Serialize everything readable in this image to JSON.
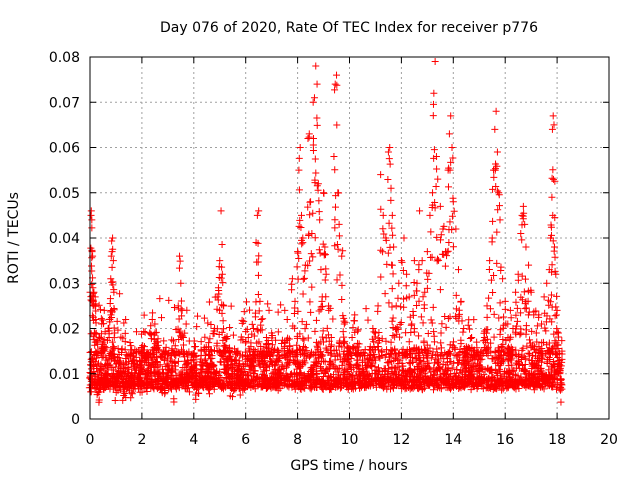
{
  "chart_data": {
    "type": "scatter",
    "title": "Day 076 of 2020, Rate Of TEC Index for receiver p776",
    "xlabel": "GPS time / hours",
    "ylabel": "ROTI / TECUs",
    "xlim": [
      0,
      20
    ],
    "ylim": [
      0,
      0.08
    ],
    "xticks": [
      0,
      2,
      4,
      6,
      8,
      10,
      12,
      14,
      16,
      18,
      20
    ],
    "yticks": [
      0,
      0.01,
      0.02,
      0.03,
      0.04,
      0.05,
      0.06,
      0.07,
      0.08
    ],
    "xtick_labels": [
      "0",
      "2",
      "4",
      "6",
      "8",
      "10",
      "12",
      "14",
      "16",
      "18",
      "20"
    ],
    "ytick_labels": [
      "0",
      "0.01",
      "0.02",
      "0.03",
      "0.04",
      "0.05",
      "0.06",
      "0.07",
      "0.08"
    ],
    "grid": true,
    "marker": "+",
    "color": "#ff0000",
    "series": [
      {
        "name": "ROTI",
        "points": [
          [
            0.0,
            0.009
          ],
          [
            0.02,
            0.012
          ],
          [
            0.04,
            0.045
          ],
          [
            0.05,
            0.046
          ],
          [
            0.07,
            0.044
          ],
          [
            0.08,
            0.037
          ],
          [
            0.1,
            0.036
          ],
          [
            0.12,
            0.025
          ],
          [
            0.13,
            0.026
          ],
          [
            0.15,
            0.028
          ],
          [
            0.18,
            0.019
          ],
          [
            0.2,
            0.027
          ],
          [
            0.22,
            0.022
          ],
          [
            0.25,
            0.014
          ],
          [
            0.3,
            0.008
          ],
          [
            0.35,
            0.006
          ],
          [
            0.4,
            0.011
          ],
          [
            0.45,
            0.021
          ],
          [
            0.5,
            0.017
          ],
          [
            0.55,
            0.024
          ],
          [
            0.6,
            0.009
          ],
          [
            0.65,
            0.013
          ],
          [
            0.7,
            0.02
          ],
          [
            0.75,
            0.022
          ],
          [
            0.8,
            0.031
          ],
          [
            0.82,
            0.036
          ],
          [
            0.85,
            0.037
          ],
          [
            0.87,
            0.04
          ],
          [
            0.9,
            0.035
          ],
          [
            0.92,
            0.028
          ],
          [
            0.95,
            0.019
          ],
          [
            1.0,
            0.007
          ],
          [
            1.1,
            0.01
          ],
          [
            1.2,
            0.012
          ],
          [
            1.3,
            0.006
          ],
          [
            1.4,
            0.009
          ],
          [
            1.5,
            0.011
          ],
          [
            1.6,
            0.008
          ],
          [
            1.7,
            0.013
          ],
          [
            1.8,
            0.015
          ],
          [
            1.9,
            0.01
          ],
          [
            2.0,
            0.012
          ],
          [
            2.1,
            0.016
          ],
          [
            2.2,
            0.009
          ],
          [
            2.3,
            0.019
          ],
          [
            2.4,
            0.022
          ],
          [
            2.5,
            0.021
          ],
          [
            2.6,
            0.017
          ],
          [
            2.7,
            0.012
          ],
          [
            2.8,
            0.01
          ],
          [
            2.9,
            0.008
          ],
          [
            3.0,
            0.011
          ],
          [
            3.1,
            0.013
          ],
          [
            3.2,
            0.009
          ],
          [
            3.3,
            0.014
          ],
          [
            3.4,
            0.025
          ],
          [
            3.45,
            0.036
          ],
          [
            3.5,
            0.03
          ],
          [
            3.55,
            0.024
          ],
          [
            3.6,
            0.018
          ],
          [
            3.7,
            0.012
          ],
          [
            3.8,
            0.009
          ],
          [
            3.9,
            0.011
          ],
          [
            4.0,
            0.013
          ],
          [
            4.1,
            0.01
          ],
          [
            4.2,
            0.008
          ],
          [
            4.3,
            0.012
          ],
          [
            4.4,
            0.015
          ],
          [
            4.5,
            0.011
          ],
          [
            4.6,
            0.009
          ],
          [
            4.7,
            0.014
          ],
          [
            4.8,
            0.02
          ],
          [
            4.9,
            0.027
          ],
          [
            4.95,
            0.029
          ],
          [
            5.0,
            0.035
          ],
          [
            5.05,
            0.046
          ],
          [
            5.1,
            0.032
          ],
          [
            5.15,
            0.025
          ],
          [
            5.2,
            0.018
          ],
          [
            5.3,
            0.012
          ],
          [
            5.4,
            0.009
          ],
          [
            5.5,
            0.011
          ],
          [
            5.6,
            0.013
          ],
          [
            5.7,
            0.015
          ],
          [
            5.8,
            0.01
          ],
          [
            5.9,
            0.012
          ],
          [
            6.0,
            0.014
          ],
          [
            6.1,
            0.018
          ],
          [
            6.2,
            0.016
          ],
          [
            6.3,
            0.02
          ],
          [
            6.4,
            0.039
          ],
          [
            6.45,
            0.045
          ],
          [
            6.5,
            0.046
          ],
          [
            6.55,
            0.026
          ],
          [
            6.6,
            0.022
          ],
          [
            6.7,
            0.015
          ],
          [
            6.8,
            0.018
          ],
          [
            6.9,
            0.024
          ],
          [
            7.0,
            0.019
          ],
          [
            7.1,
            0.015
          ],
          [
            7.2,
            0.013
          ],
          [
            7.3,
            0.011
          ],
          [
            7.4,
            0.014
          ],
          [
            7.5,
            0.017
          ],
          [
            7.6,
            0.022
          ],
          [
            7.7,
            0.016
          ],
          [
            7.8,
            0.031
          ],
          [
            7.9,
            0.026
          ],
          [
            8.0,
            0.037
          ],
          [
            8.05,
            0.055
          ],
          [
            8.1,
            0.06
          ],
          [
            8.15,
            0.045
          ],
          [
            8.2,
            0.04
          ],
          [
            8.3,
            0.034
          ],
          [
            8.4,
            0.062
          ],
          [
            8.45,
            0.063
          ],
          [
            8.5,
            0.048
          ],
          [
            8.55,
            0.041
          ],
          [
            8.6,
            0.07
          ],
          [
            8.65,
            0.071
          ],
          [
            8.7,
            0.078
          ],
          [
            8.75,
            0.074
          ],
          [
            8.8,
            0.052
          ],
          [
            8.85,
            0.044
          ],
          [
            8.9,
            0.033
          ],
          [
            8.95,
            0.027
          ],
          [
            9.0,
            0.05
          ],
          [
            9.05,
            0.038
          ],
          [
            9.1,
            0.032
          ],
          [
            9.2,
            0.024
          ],
          [
            9.3,
            0.018
          ],
          [
            9.4,
            0.058
          ],
          [
            9.45,
            0.074
          ],
          [
            9.5,
            0.076
          ],
          [
            9.55,
            0.05
          ],
          [
            9.6,
            0.043
          ],
          [
            9.7,
            0.036
          ],
          [
            9.8,
            0.021
          ],
          [
            9.9,
            0.015
          ],
          [
            10.0,
            0.012
          ],
          [
            10.1,
            0.018
          ],
          [
            10.2,
            0.023
          ],
          [
            10.3,
            0.014
          ],
          [
            10.4,
            0.011
          ],
          [
            10.5,
            0.013
          ],
          [
            10.6,
            0.009
          ],
          [
            10.7,
            0.012
          ],
          [
            10.8,
            0.016
          ],
          [
            10.9,
            0.02
          ],
          [
            11.0,
            0.019
          ],
          [
            11.1,
            0.025
          ],
          [
            11.2,
            0.054
          ],
          [
            11.3,
            0.045
          ],
          [
            11.4,
            0.04
          ],
          [
            11.5,
            0.059
          ],
          [
            11.55,
            0.06
          ],
          [
            11.6,
            0.051
          ],
          [
            11.65,
            0.045
          ],
          [
            11.7,
            0.038
          ],
          [
            11.8,
            0.025
          ],
          [
            11.9,
            0.03
          ],
          [
            12.0,
            0.035
          ],
          [
            12.1,
            0.04
          ],
          [
            12.2,
            0.032
          ],
          [
            12.3,
            0.027
          ],
          [
            12.4,
            0.021
          ],
          [
            12.5,
            0.035
          ],
          [
            12.6,
            0.03
          ],
          [
            12.7,
            0.046
          ],
          [
            12.8,
            0.035
          ],
          [
            12.9,
            0.028
          ],
          [
            13.0,
            0.037
          ],
          [
            13.1,
            0.045
          ],
          [
            13.2,
            0.05
          ],
          [
            13.25,
            0.072
          ],
          [
            13.3,
            0.079
          ],
          [
            13.35,
            0.058
          ],
          [
            13.4,
            0.053
          ],
          [
            13.5,
            0.047
          ],
          [
            13.6,
            0.042
          ],
          [
            13.7,
            0.037
          ],
          [
            13.8,
            0.055
          ],
          [
            13.85,
            0.063
          ],
          [
            13.9,
            0.067
          ],
          [
            13.95,
            0.06
          ],
          [
            14.0,
            0.048
          ],
          [
            14.1,
            0.042
          ],
          [
            14.2,
            0.033
          ],
          [
            14.3,
            0.026
          ],
          [
            14.4,
            0.02
          ],
          [
            14.5,
            0.016
          ],
          [
            14.6,
            0.013
          ],
          [
            14.7,
            0.011
          ],
          [
            14.8,
            0.014
          ],
          [
            14.9,
            0.017
          ],
          [
            15.0,
            0.012
          ],
          [
            15.1,
            0.015
          ],
          [
            15.2,
            0.018
          ],
          [
            15.3,
            0.025
          ],
          [
            15.4,
            0.035
          ],
          [
            15.5,
            0.04
          ],
          [
            15.55,
            0.055
          ],
          [
            15.6,
            0.064
          ],
          [
            15.65,
            0.068
          ],
          [
            15.7,
            0.059
          ],
          [
            15.75,
            0.05
          ],
          [
            15.8,
            0.044
          ],
          [
            15.9,
            0.031
          ],
          [
            16.0,
            0.026
          ],
          [
            16.1,
            0.021
          ],
          [
            16.2,
            0.024
          ],
          [
            16.3,
            0.02
          ],
          [
            16.4,
            0.028
          ],
          [
            16.5,
            0.032
          ],
          [
            16.6,
            0.041
          ],
          [
            16.65,
            0.045
          ],
          [
            16.7,
            0.047
          ],
          [
            16.75,
            0.043
          ],
          [
            16.8,
            0.038
          ],
          [
            16.9,
            0.034
          ],
          [
            17.0,
            0.028
          ],
          [
            17.1,
            0.023
          ],
          [
            17.2,
            0.019
          ],
          [
            17.3,
            0.016
          ],
          [
            17.4,
            0.021
          ],
          [
            17.5,
            0.027
          ],
          [
            17.6,
            0.03
          ],
          [
            17.7,
            0.033
          ],
          [
            17.75,
            0.04
          ],
          [
            17.8,
            0.049
          ],
          [
            17.82,
            0.064
          ],
          [
            17.85,
            0.067
          ],
          [
            17.88,
            0.065
          ],
          [
            17.9,
            0.038
          ],
          [
            17.95,
            0.032
          ],
          [
            18.0,
            0.024
          ],
          [
            18.05,
            0.019
          ],
          [
            18.1,
            0.012
          ],
          [
            18.15,
            0.008
          ]
        ]
      }
    ],
    "baseline": {
      "note": "dense cloud of points between roughly 0.004 and 0.016 over 0 to 18.2 hours",
      "x_start": 0,
      "x_end": 18.2,
      "y_min": 0.003,
      "y_max": 0.016
    }
  }
}
